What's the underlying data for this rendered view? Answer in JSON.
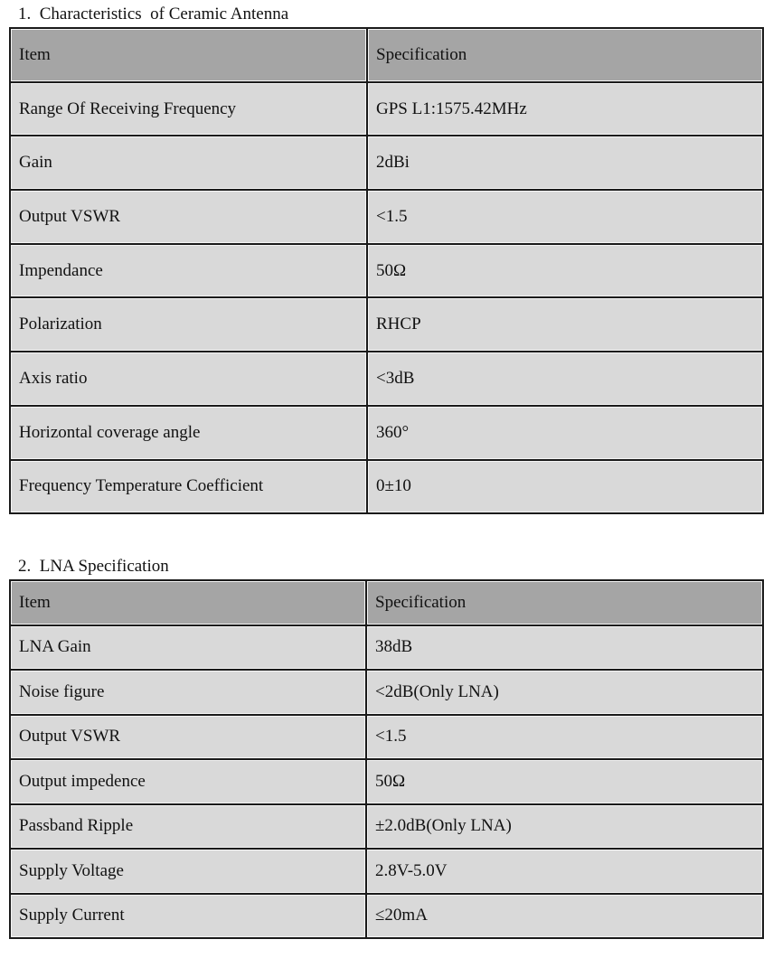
{
  "section1": {
    "title": "1.  Characteristics  of Ceramic Antenna",
    "headers": [
      "Item",
      "Specification"
    ],
    "rows": [
      [
        "Range Of Receiving Frequency",
        "GPS L1:1575.42MHz"
      ],
      [
        "Gain",
        "2dBi"
      ],
      [
        "Output VSWR",
        "<1.5"
      ],
      [
        "Impendance",
        "50Ω"
      ],
      [
        "Polarization",
        "RHCP"
      ],
      [
        "Axis ratio",
        "<3dB"
      ],
      [
        "Horizontal coverage angle",
        "360°"
      ],
      [
        "Frequency Temperature Coefficient",
        "0±10"
      ]
    ]
  },
  "section2": {
    "title": "2.  LNA Specification",
    "headers": [
      "Item",
      "Specification"
    ],
    "rows": [
      [
        "LNA Gain",
        "38dB"
      ],
      [
        "Noise figure",
        "<2dB(Only LNA)"
      ],
      [
        "Output VSWR",
        "<1.5"
      ],
      [
        "Output impedence",
        "50Ω"
      ],
      [
        "Passband    Ripple",
        "±2.0dB(Only LNA)"
      ],
      [
        "Supply Voltage",
        "2.8V-5.0V"
      ],
      [
        "Supply Current",
        "≤20mA"
      ]
    ]
  }
}
